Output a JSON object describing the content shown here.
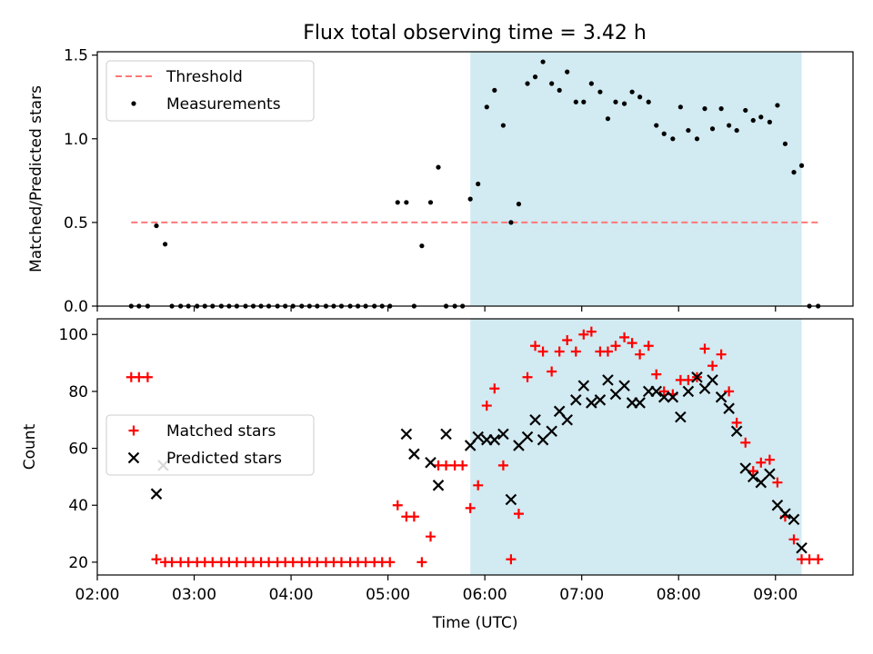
{
  "title": "Flux total observing time = 3.42 h",
  "colors": {
    "threshold": "#ff7777",
    "measurement": "#000000",
    "matched": "#ff0000",
    "predicted": "#000000",
    "observing_span": "#add8e6"
  },
  "chart_data": [
    {
      "type": "scatter",
      "ylabel": "Matched/Predicted stars",
      "xlim": [
        2.0,
        9.8
      ],
      "ylim": [
        0.0,
        1.52
      ],
      "y_ticks": [
        "0.0",
        "0.5",
        "1.0",
        "1.5"
      ],
      "y_tick_values": [
        0.0,
        0.5,
        1.0,
        1.5
      ],
      "observing_span": [
        5.85,
        9.27
      ],
      "legend_position": "upper-left",
      "series": [
        {
          "name": "Threshold",
          "style": "dashed-line",
          "x": [
            2.35,
            9.45
          ],
          "values": [
            0.5,
            0.5
          ]
        },
        {
          "name": "Measurements",
          "style": "dot",
          "x": [
            2.35,
            2.43,
            2.52,
            2.61,
            2.7,
            2.77,
            2.86,
            2.94,
            3.03,
            3.11,
            3.19,
            3.28,
            3.36,
            3.44,
            3.53,
            3.61,
            3.69,
            3.77,
            3.86,
            3.94,
            4.02,
            4.11,
            4.19,
            4.27,
            4.36,
            4.44,
            4.52,
            4.61,
            4.69,
            4.77,
            4.86,
            4.94,
            5.02,
            5.1,
            5.19,
            5.27,
            5.35,
            5.44,
            5.52,
            5.6,
            5.69,
            5.77,
            5.85,
            5.93,
            6.02,
            6.1,
            6.19,
            6.27,
            6.35,
            6.44,
            6.52,
            6.6,
            6.69,
            6.77,
            6.85,
            6.94,
            7.02,
            7.1,
            7.19,
            7.27,
            7.35,
            7.44,
            7.52,
            7.6,
            7.69,
            7.77,
            7.85,
            7.94,
            8.02,
            8.1,
            8.19,
            8.27,
            8.35,
            8.44,
            8.52,
            8.6,
            8.69,
            8.77,
            8.85,
            8.94,
            9.02,
            9.1,
            9.19,
            9.27,
            9.35,
            9.44
          ],
          "values": [
            0.0,
            0.0,
            0.0,
            0.48,
            0.37,
            0.0,
            0.0,
            0.0,
            0.0,
            0.0,
            0.0,
            0.0,
            0.0,
            0.0,
            0.0,
            0.0,
            0.0,
            0.0,
            0.0,
            0.0,
            0.0,
            0.0,
            0.0,
            0.0,
            0.0,
            0.0,
            0.0,
            0.0,
            0.0,
            0.0,
            0.0,
            0.0,
            0.0,
            0.62,
            0.62,
            0.0,
            0.36,
            0.62,
            0.83,
            0.0,
            0.0,
            0.0,
            0.64,
            0.73,
            1.19,
            1.29,
            1.08,
            0.5,
            0.61,
            1.33,
            1.37,
            1.46,
            1.33,
            1.29,
            1.4,
            1.22,
            1.22,
            1.33,
            1.28,
            1.12,
            1.22,
            1.21,
            1.28,
            1.25,
            1.22,
            1.08,
            1.03,
            1.0,
            1.19,
            1.05,
            1.0,
            1.18,
            1.06,
            1.18,
            1.08,
            1.05,
            1.17,
            1.11,
            1.13,
            1.1,
            1.2,
            0.97,
            0.8,
            0.84,
            0.0,
            0.0
          ]
        }
      ]
    },
    {
      "type": "scatter",
      "xlabel": "Time (UTC)",
      "ylabel": "Count",
      "xlim": [
        2.0,
        9.8
      ],
      "ylim": [
        15.5,
        105.5
      ],
      "x_ticks": [
        "02:00",
        "03:00",
        "04:00",
        "05:00",
        "06:00",
        "07:00",
        "08:00",
        "09:00"
      ],
      "x_tick_values": [
        2,
        3,
        4,
        5,
        6,
        7,
        8,
        9
      ],
      "y_ticks": [
        "20",
        "40",
        "60",
        "80",
        "100"
      ],
      "y_tick_values": [
        20,
        40,
        60,
        80,
        100
      ],
      "observing_span": [
        5.85,
        9.27
      ],
      "legend_position": "center-left",
      "series": [
        {
          "name": "Matched stars",
          "marker": "plus",
          "x": [
            2.35,
            2.43,
            2.52,
            2.61,
            2.7,
            2.77,
            2.86,
            2.94,
            3.03,
            3.11,
            3.19,
            3.28,
            3.36,
            3.44,
            3.53,
            3.61,
            3.69,
            3.77,
            3.86,
            3.94,
            4.02,
            4.11,
            4.19,
            4.27,
            4.36,
            4.44,
            4.52,
            4.61,
            4.69,
            4.77,
            4.86,
            4.94,
            5.02,
            5.1,
            5.19,
            5.27,
            5.35,
            5.44,
            5.52,
            5.6,
            5.69,
            5.77,
            5.85,
            5.93,
            6.02,
            6.1,
            6.19,
            6.27,
            6.35,
            6.44,
            6.52,
            6.6,
            6.69,
            6.77,
            6.85,
            6.94,
            7.02,
            7.1,
            7.19,
            7.27,
            7.35,
            7.44,
            7.52,
            7.6,
            7.69,
            7.77,
            7.85,
            7.94,
            8.02,
            8.1,
            8.19,
            8.27,
            8.35,
            8.44,
            8.52,
            8.6,
            8.69,
            8.77,
            8.85,
            8.94,
            9.02,
            9.1,
            9.19,
            9.27,
            9.35,
            9.44
          ],
          "values": [
            85,
            85,
            85,
            21,
            20,
            20,
            20,
            20,
            20,
            20,
            20,
            20,
            20,
            20,
            20,
            20,
            20,
            20,
            20,
            20,
            20,
            20,
            20,
            20,
            20,
            20,
            20,
            20,
            20,
            20,
            20,
            20,
            20,
            40,
            36,
            36,
            20,
            29,
            54,
            54,
            54,
            54,
            39,
            47,
            75,
            81,
            54,
            21,
            37,
            85,
            96,
            94,
            87,
            94,
            98,
            94,
            100,
            101,
            94,
            94,
            96,
            99,
            97,
            93,
            96,
            86,
            80,
            79,
            84,
            84,
            85,
            95,
            89,
            93,
            80,
            69,
            62,
            52,
            55,
            56,
            48,
            36,
            28,
            21,
            21,
            21
          ]
        },
        {
          "name": "Predicted stars",
          "marker": "x",
          "x": [
            2.61,
            2.68,
            5.19,
            5.27,
            5.44,
            5.52,
            5.6,
            5.85,
            5.93,
            6.02,
            6.1,
            6.19,
            6.27,
            6.35,
            6.44,
            6.52,
            6.6,
            6.69,
            6.77,
            6.85,
            6.94,
            7.02,
            7.1,
            7.19,
            7.27,
            7.35,
            7.44,
            7.52,
            7.6,
            7.69,
            7.77,
            7.85,
            7.94,
            8.02,
            8.1,
            8.19,
            8.27,
            8.35,
            8.44,
            8.52,
            8.6,
            8.69,
            8.77,
            8.85,
            8.94,
            9.02,
            9.1,
            9.19,
            9.27
          ],
          "values": [
            44,
            54,
            65,
            58,
            55,
            47,
            65,
            61,
            64,
            63,
            63,
            65,
            42,
            61,
            64,
            70,
            63,
            66,
            73,
            70,
            77,
            82,
            76,
            77,
            84,
            79,
            82,
            76,
            76,
            80,
            80,
            78,
            78,
            71,
            80,
            85,
            81,
            84,
            78,
            74,
            66,
            53,
            50,
            48,
            51,
            40,
            37,
            35,
            25
          ]
        }
      ]
    }
  ]
}
